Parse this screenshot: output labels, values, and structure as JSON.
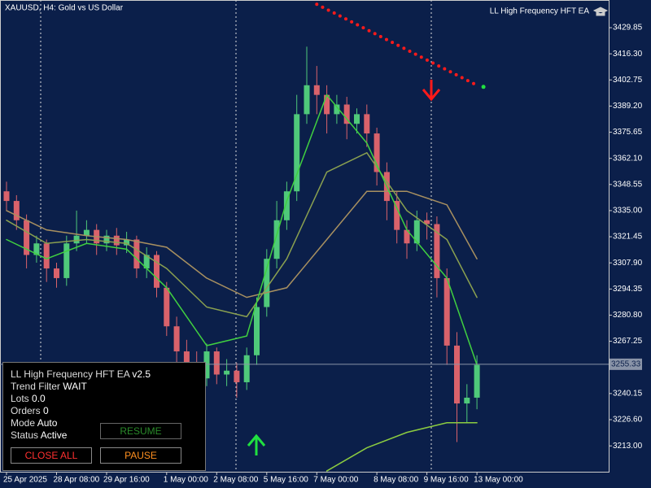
{
  "chart_data": {
    "type": "candlestick",
    "title": "XAUUSD, H4:  Gold vs US Dollar",
    "ea_label": "LL High Frequency HFT EA",
    "up_color": "#4fc97a",
    "down_color": "#d9626b",
    "categories": [
      "25 Apr 2025",
      null,
      null,
      null,
      null,
      "28 Apr 08:00",
      null,
      null,
      null,
      null,
      "29 Apr 16:00",
      null,
      null,
      null,
      null,
      null,
      "1 May 00:00",
      null,
      null,
      null,
      null,
      "2 May 08:00",
      null,
      null,
      null,
      null,
      "5 May 16:00",
      null,
      null,
      null,
      null,
      "7 May 00:00",
      null,
      null,
      null,
      null,
      null,
      "8 May 08:00",
      null,
      null,
      null,
      null,
      "9 May 16:00",
      null,
      null,
      null,
      null,
      "13 May 00:00"
    ],
    "open": [
      3345,
      3340,
      3330,
      3312,
      3318,
      3305,
      3300,
      3318,
      3322,
      3325,
      3318,
      3322,
      3317,
      3320,
      3305,
      3312,
      3295,
      3275,
      3262,
      3255,
      3248,
      3262,
      3250,
      3252,
      3246,
      3260,
      3285,
      3310,
      3330,
      3345,
      3385,
      3400,
      3395,
      3385,
      3390,
      3380,
      3385,
      3375,
      3355,
      3340,
      3325,
      3318,
      3330,
      3328,
      3300,
      3265,
      3235,
      3238
    ],
    "high": [
      3350,
      3343,
      3333,
      3322,
      3320,
      3308,
      3322,
      3335,
      3330,
      3328,
      3325,
      3326,
      3324,
      3322,
      3316,
      3314,
      3298,
      3280,
      3268,
      3262,
      3266,
      3264,
      3258,
      3256,
      3264,
      3290,
      3315,
      3340,
      3350,
      3395,
      3420,
      3410,
      3400,
      3395,
      3394,
      3388,
      3390,
      3378,
      3360,
      3345,
      3330,
      3335,
      3334,
      3332,
      3305,
      3272,
      3245,
      3260
    ],
    "low": [
      3335,
      3325,
      3305,
      3308,
      3298,
      3295,
      3296,
      3314,
      3318,
      3312,
      3314,
      3312,
      3313,
      3300,
      3300,
      3290,
      3270,
      3255,
      3245,
      3240,
      3244,
      3245,
      3244,
      3238,
      3242,
      3255,
      3280,
      3305,
      3325,
      3340,
      3380,
      3385,
      3375,
      3380,
      3372,
      3375,
      3368,
      3348,
      3330,
      3318,
      3310,
      3314,
      3320,
      3290,
      3255,
      3215,
      3225,
      3232
    ],
    "close": [
      3340,
      3330,
      3312,
      3318,
      3305,
      3300,
      3318,
      3322,
      3325,
      3318,
      3322,
      3317,
      3320,
      3305,
      3312,
      3295,
      3275,
      3262,
      3255,
      3248,
      3262,
      3250,
      3252,
      3246,
      3260,
      3285,
      3310,
      3330,
      3345,
      3385,
      3400,
      3395,
      3385,
      3390,
      3380,
      3385,
      3375,
      3355,
      3340,
      3325,
      3318,
      3330,
      3328,
      3300,
      3265,
      3235,
      3238,
      3255
    ],
    "series": [
      {
        "color": "#a89060",
        "x": [
          0,
          4,
          8,
          12,
          16,
          20,
          24,
          28,
          32,
          36,
          40,
          44,
          47
        ],
        "values": [
          3335,
          3325,
          3322,
          3320,
          3316,
          3300,
          3290,
          3295,
          3320,
          3345,
          3345,
          3338,
          3310
        ]
      },
      {
        "color": "#8aa050",
        "x": [
          0,
          4,
          8,
          12,
          16,
          20,
          24,
          28,
          32,
          36,
          40,
          44,
          47
        ],
        "values": [
          3330,
          3318,
          3320,
          3318,
          3305,
          3285,
          3280,
          3310,
          3355,
          3365,
          3335,
          3320,
          3290
        ]
      },
      {
        "color": "#40d040",
        "x": [
          0,
          4,
          8,
          12,
          16,
          20,
          24,
          28,
          32,
          36,
          40,
          44,
          47
        ],
        "values": [
          3320,
          3310,
          3318,
          3315,
          3295,
          3265,
          3270,
          3340,
          3395,
          3370,
          3325,
          3300,
          3255
        ]
      },
      {
        "color": "#8ccc40",
        "x": [
          32,
          36,
          40,
          44,
          47
        ],
        "values": [
          3200,
          3212,
          3220,
          3225,
          3225
        ]
      },
      {
        "color": "#ff1a1a",
        "dotted": true,
        "x": [
          31,
          47
        ],
        "values": [
          3442,
          3400
        ]
      }
    ],
    "last_price": 3255.33,
    "ylim": [
      3199.6,
      3444.2
    ],
    "yticks": [
      {
        "value": 3213.0,
        "label": "3213.00"
      },
      {
        "value": 3226.6,
        "label": "3226.60"
      },
      3240.15,
      3267.25,
      {
        "value": 3280.8,
        "label": "3280.80"
      },
      3294.35,
      {
        "value": 3307.9,
        "label": "3307.90"
      },
      3321.45,
      {
        "value": 3335.0,
        "label": "3335.00"
      },
      3348.55,
      {
        "value": 3362.1,
        "label": "3362.10"
      },
      3375.65,
      {
        "value": 3389.2,
        "label": "3389.20"
      },
      3402.75,
      {
        "value": 3416.3,
        "label": "3416.30"
      },
      3429.85
    ]
  },
  "panel": {
    "title": "LL High Frequency HFT EA",
    "version": "v2.5",
    "rows": [
      [
        "Trend Filter",
        "WAIT"
      ],
      [
        "Lots",
        "0.0"
      ],
      [
        "Orders",
        "0"
      ],
      [
        "Mode",
        "Auto"
      ],
      [
        "Status",
        "Active"
      ]
    ],
    "buttons": {
      "resume": "RESUME",
      "close_all": "CLOSE ALL",
      "pause": "PAUSE"
    }
  }
}
